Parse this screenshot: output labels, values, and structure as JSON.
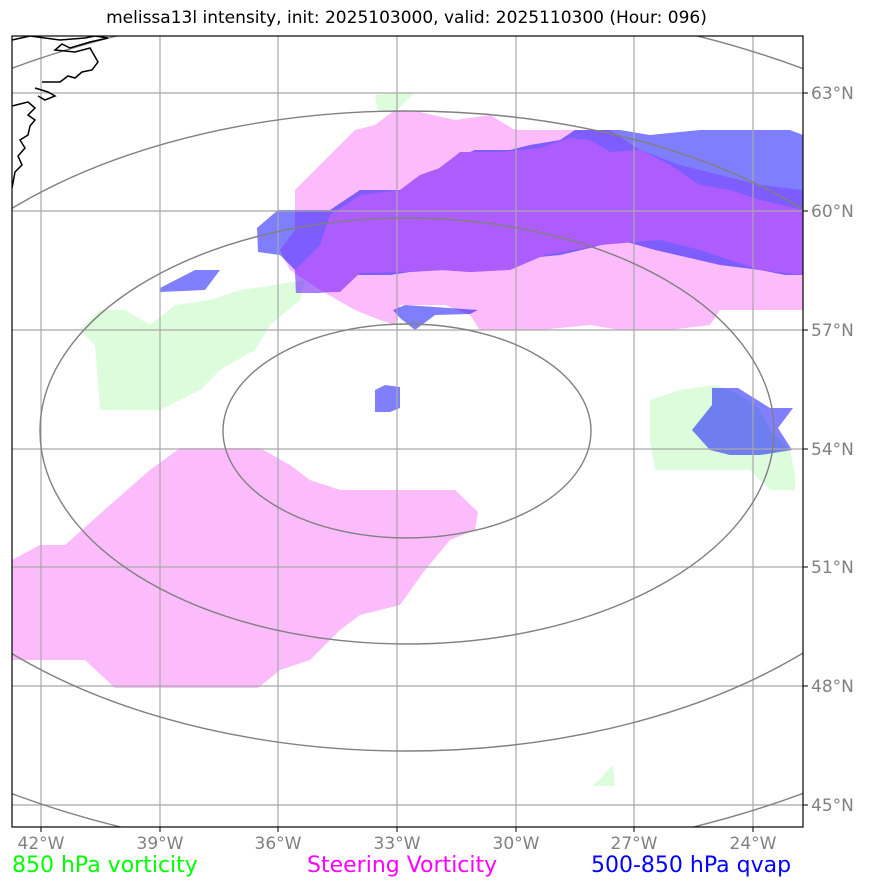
{
  "title": "melissa13l intensity, init: 2025103000, valid: 2025110300 (Hour: 096)",
  "lat_labels": [
    "63°N",
    "60°N",
    "57°N",
    "54°N",
    "51°N",
    "48°N",
    "45°N"
  ],
  "lon_labels": [
    "42°W",
    "39°W",
    "36°W",
    "33°W",
    "30°W",
    "27°W",
    "24°W"
  ],
  "legend": {
    "vort850": "850 hPa vorticity",
    "steering": "Steering Vorticity",
    "qvap": "500-850 hPa qvap"
  },
  "colors": {
    "vort850": "#00ff00",
    "steering": "#ff00ff",
    "qvap": "#0000ff",
    "grid": "#808080",
    "range_rings": "#808080"
  }
}
